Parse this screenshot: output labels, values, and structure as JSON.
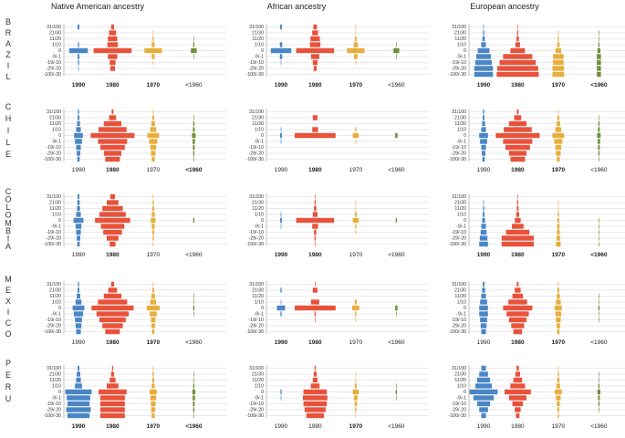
{
  "chart_data": {
    "type": "bar",
    "subtype": "mirrored-histogram grid",
    "title": "",
    "column_titles": [
      "Native American ancestry",
      "African ancestry",
      "European ancestry"
    ],
    "row_labels": [
      "BRAZIL",
      "CHILE",
      "COLOMBIA",
      "MEXICO",
      "PERU"
    ],
    "bin_labels": [
      "31/100",
      "21/30",
      "11/20",
      "1/10",
      "0",
      "-9/-1",
      "-19/-10",
      "-29/-20",
      "-100/-30"
    ],
    "cohorts": [
      "1990",
      "1980",
      "1970",
      "<1960"
    ],
    "colors": {
      "1990": "#4a86c5",
      "1980": "#e8523b",
      "1970": "#e7ae3d",
      "<1960": "#6e8f3a",
      "grid": "#d6d6d6",
      "axis": "#9a9a9a"
    },
    "panels": [
      {
        "row": 0,
        "col": 0,
        "bold": [
          "1990",
          "1980",
          "1970"
        ],
        "series": [
          [
            3,
            0,
            0,
            2,
            32,
            3,
            2,
            1,
            0
          ],
          [
            5,
            12,
            16,
            18,
            65,
            16,
            10,
            8,
            0
          ],
          [
            0,
            1,
            2,
            5,
            30,
            5,
            1,
            0,
            0
          ],
          [
            0,
            0,
            1,
            2,
            10,
            1,
            0,
            0,
            0
          ]
        ]
      },
      {
        "row": 0,
        "col": 1,
        "bold": [
          "1990",
          "1980",
          "1970"
        ],
        "series": [
          [
            3,
            0,
            0,
            4,
            35,
            4,
            1,
            0,
            0
          ],
          [
            6,
            10,
            16,
            18,
            65,
            14,
            8,
            5,
            0
          ],
          [
            1,
            1,
            3,
            7,
            30,
            6,
            1,
            0,
            0
          ],
          [
            0,
            0,
            0,
            1,
            10,
            1,
            0,
            0,
            0
          ]
        ]
      },
      {
        "row": 0,
        "col": 2,
        "bold": [
          "1990",
          "1980",
          "1970",
          "<1960"
        ],
        "series": [
          [
            1,
            2,
            4,
            8,
            20,
            25,
            28,
            32,
            32
          ],
          [
            1,
            2,
            4,
            8,
            25,
            50,
            62,
            70,
            72
          ],
          [
            0,
            1,
            2,
            4,
            10,
            18,
            18,
            20,
            20
          ],
          [
            0,
            1,
            1,
            2,
            5,
            7,
            7,
            7,
            7
          ]
        ]
      },
      {
        "row": 1,
        "col": 0,
        "bold": [
          "1980",
          "<1960"
        ],
        "series": [
          [
            2,
            3,
            5,
            8,
            15,
            12,
            8,
            6,
            4
          ],
          [
            3,
            12,
            30,
            48,
            75,
            50,
            42,
            30,
            25
          ],
          [
            1,
            3,
            6,
            10,
            20,
            14,
            10,
            8,
            5
          ],
          [
            0,
            1,
            2,
            3,
            6,
            4,
            3,
            2,
            1
          ]
        ]
      },
      {
        "row": 1,
        "col": 1,
        "bold": [
          "1980"
        ],
        "series": [
          [
            0,
            0,
            0,
            1,
            3,
            1,
            0,
            0,
            0
          ],
          [
            0,
            8,
            0,
            10,
            70,
            0,
            0,
            0,
            0
          ],
          [
            0,
            0,
            0,
            2,
            10,
            1,
            0,
            0,
            0
          ],
          [
            0,
            0,
            0,
            0,
            4,
            0,
            0,
            0,
            0
          ]
        ]
      },
      {
        "row": 1,
        "col": 2,
        "bold": [
          "1980",
          "1970"
        ],
        "series": [
          [
            2,
            3,
            5,
            8,
            15,
            12,
            8,
            6,
            4
          ],
          [
            3,
            12,
            30,
            48,
            75,
            50,
            42,
            30,
            25
          ],
          [
            1,
            3,
            6,
            10,
            20,
            14,
            10,
            8,
            5
          ],
          [
            0,
            1,
            2,
            3,
            6,
            4,
            3,
            2,
            1
          ]
        ]
      },
      {
        "row": 2,
        "col": 0,
        "bold": [
          "1980"
        ],
        "series": [
          [
            3,
            4,
            5,
            8,
            17,
            10,
            8,
            6,
            4
          ],
          [
            8,
            20,
            35,
            45,
            60,
            40,
            32,
            20,
            10
          ],
          [
            1,
            2,
            3,
            5,
            8,
            5,
            3,
            2,
            1
          ],
          [
            0,
            0,
            0,
            0,
            2,
            0,
            0,
            0,
            0
          ]
        ]
      },
      {
        "row": 2,
        "col": 1,
        "bold": [
          "1990",
          "1980"
        ],
        "series": [
          [
            0,
            0,
            0,
            1,
            3,
            1,
            0,
            0,
            0
          ],
          [
            1,
            2,
            4,
            8,
            65,
            10,
            4,
            2,
            1
          ],
          [
            0,
            1,
            1,
            3,
            10,
            2,
            1,
            0,
            0
          ],
          [
            0,
            0,
            0,
            0,
            2,
            0,
            0,
            0,
            0
          ]
        ]
      },
      {
        "row": 2,
        "col": 2,
        "bold": [
          "1990",
          "1980",
          "1970",
          "<1960"
        ],
        "series": [
          [
            0,
            1,
            2,
            3,
            5,
            8,
            10,
            13,
            15
          ],
          [
            1,
            2,
            3,
            5,
            10,
            20,
            40,
            55,
            55
          ],
          [
            0,
            1,
            1,
            2,
            3,
            4,
            5,
            6,
            8
          ],
          [
            0,
            0,
            0,
            0,
            1,
            1,
            1,
            1,
            1
          ]
        ]
      },
      {
        "row": 3,
        "col": 0,
        "bold": [
          "1980",
          "1970"
        ],
        "series": [
          [
            2,
            3,
            6,
            10,
            20,
            16,
            12,
            10,
            8
          ],
          [
            5,
            15,
            30,
            50,
            72,
            55,
            45,
            35,
            25
          ],
          [
            1,
            3,
            6,
            10,
            22,
            12,
            8,
            6,
            4
          ],
          [
            0,
            0,
            1,
            1,
            2,
            1,
            0,
            0,
            0
          ]
        ]
      },
      {
        "row": 3,
        "col": 1,
        "bold": [
          "1990",
          "1980"
        ],
        "series": [
          [
            0,
            2,
            0,
            1,
            14,
            2,
            0,
            0,
            0
          ],
          [
            1,
            8,
            0,
            14,
            70,
            2,
            1,
            0,
            0
          ],
          [
            0,
            0,
            0,
            3,
            12,
            2,
            1,
            0,
            0
          ],
          [
            0,
            0,
            0,
            0,
            4,
            1,
            0,
            0,
            0
          ]
        ]
      },
      {
        "row": 3,
        "col": 2,
        "bold": [
          "1980",
          "1970"
        ],
        "series": [
          [
            3,
            5,
            8,
            12,
            15,
            15,
            12,
            10,
            8
          ],
          [
            3,
            10,
            18,
            32,
            50,
            38,
            30,
            22,
            15
          ],
          [
            1,
            3,
            5,
            8,
            12,
            10,
            8,
            6,
            4
          ],
          [
            0,
            0,
            1,
            1,
            2,
            1,
            1,
            0,
            0
          ]
        ]
      },
      {
        "row": 4,
        "col": 0,
        "bold": [
          "1990",
          "1980",
          "1970",
          "<1960"
        ],
        "series": [
          [
            3,
            6,
            8,
            12,
            45,
            40,
            38,
            42,
            38
          ],
          [
            2,
            5,
            10,
            20,
            48,
            42,
            42,
            42,
            42
          ],
          [
            1,
            2,
            3,
            5,
            12,
            10,
            8,
            7,
            5
          ],
          [
            0,
            1,
            1,
            2,
            5,
            4,
            3,
            2,
            1
          ]
        ]
      },
      {
        "row": 4,
        "col": 1,
        "bold": [
          "1970"
        ],
        "series": [
          [
            0,
            0,
            0,
            0,
            2,
            1,
            0,
            0,
            0
          ],
          [
            2,
            5,
            8,
            15,
            40,
            42,
            40,
            36,
            30
          ],
          [
            0,
            1,
            1,
            3,
            10,
            6,
            4,
            2,
            1
          ],
          [
            0,
            0,
            0,
            1,
            2,
            1,
            0,
            0,
            0
          ]
        ]
      },
      {
        "row": 4,
        "col": 2,
        "bold": [],
        "series": [
          [
            8,
            15,
            22,
            28,
            48,
            35,
            22,
            15,
            8
          ],
          [
            4,
            8,
            15,
            25,
            45,
            30,
            18,
            10,
            6
          ],
          [
            1,
            2,
            4,
            6,
            12,
            8,
            5,
            3,
            2
          ],
          [
            0,
            1,
            1,
            2,
            5,
            3,
            2,
            1,
            0
          ]
        ]
      }
    ]
  }
}
